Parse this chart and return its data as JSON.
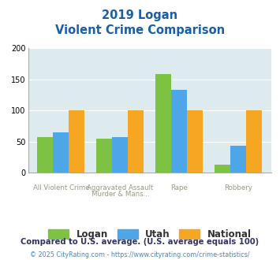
{
  "title_line1": "2019 Logan",
  "title_line2": "Violent Crime Comparison",
  "category_top": [
    "",
    "Aggravated Assault",
    "",
    ""
  ],
  "category_bot": [
    "All Violent Crime",
    "Murder & Mans...",
    "Rape",
    "Robbery"
  ],
  "series": {
    "Logan": [
      58,
      55,
      158,
      13
    ],
    "Utah": [
      65,
      58,
      133,
      44
    ],
    "National": [
      100,
      100,
      100,
      100
    ]
  },
  "colors": {
    "Logan": "#7dc242",
    "Utah": "#4da6e8",
    "National": "#f5a623"
  },
  "ylim": [
    0,
    200
  ],
  "yticks": [
    0,
    50,
    100,
    150,
    200
  ],
  "title_color": "#1a5fa8",
  "axis_bg_color": "#ddeaee",
  "fig_bg_color": "#ffffff",
  "footnote1": "Compared to U.S. average. (U.S. average equals 100)",
  "footnote2": "© 2025 CityRating.com - https://www.cityrating.com/crime-statistics/",
  "footnote1_color": "#333366",
  "footnote2_color": "#4488cc",
  "legend_labels": [
    "Logan",
    "Utah",
    "National"
  ],
  "label_color": "#999988",
  "label_top_color": "#999988"
}
